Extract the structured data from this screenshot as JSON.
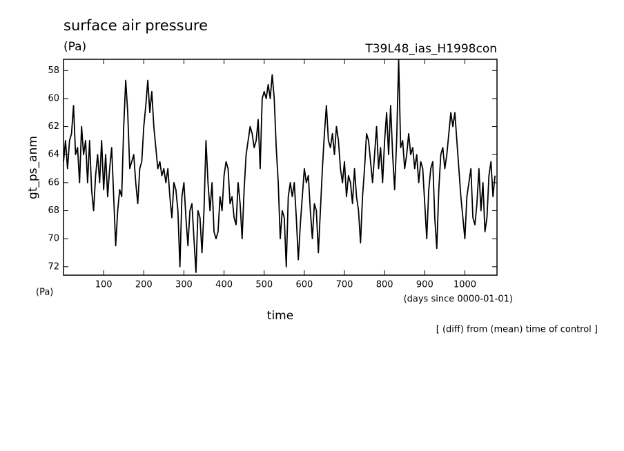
{
  "chart_data": {
    "type": "line",
    "title": "surface air pressure",
    "units": "(Pa)",
    "run_label": "T39L48_ias_H1998con",
    "y_label": "gt_ps_anm",
    "x_label": "time",
    "y_units_bottom": "(Pa)",
    "x_units": "(days since 0000-01-01)",
    "note": "[ (diff) from (mean) time of control ]",
    "xlim": [
      0,
      1080
    ],
    "ylim": [
      72.6,
      57.2
    ],
    "xticks": [
      100,
      200,
      300,
      400,
      500,
      600,
      700,
      800,
      900,
      1000
    ],
    "yticks": [
      58,
      60,
      62,
      64,
      66,
      68,
      70,
      72
    ],
    "color": "#000000",
    "x": [
      0,
      5,
      10,
      15,
      20,
      25,
      30,
      35,
      40,
      45,
      50,
      55,
      60,
      65,
      70,
      75,
      80,
      85,
      90,
      95,
      100,
      105,
      110,
      115,
      120,
      125,
      130,
      135,
      140,
      145,
      150,
      155,
      160,
      165,
      170,
      175,
      180,
      185,
      190,
      195,
      200,
      205,
      210,
      215,
      220,
      225,
      230,
      235,
      240,
      245,
      250,
      255,
      260,
      265,
      270,
      275,
      280,
      285,
      290,
      295,
      300,
      305,
      310,
      315,
      320,
      325,
      330,
      335,
      340,
      345,
      350,
      355,
      360,
      365,
      370,
      375,
      380,
      385,
      390,
      395,
      400,
      405,
      410,
      415,
      420,
      425,
      430,
      435,
      440,
      445,
      450,
      455,
      460,
      465,
      470,
      475,
      480,
      485,
      490,
      495,
      500,
      505,
      510,
      515,
      520,
      525,
      530,
      535,
      540,
      545,
      550,
      555,
      560,
      565,
      570,
      575,
      580,
      585,
      590,
      595,
      600,
      605,
      610,
      615,
      620,
      625,
      630,
      635,
      640,
      645,
      650,
      655,
      660,
      665,
      670,
      675,
      680,
      685,
      690,
      695,
      700,
      705,
      710,
      715,
      720,
      725,
      730,
      735,
      740,
      745,
      750,
      755,
      760,
      765,
      770,
      775,
      780,
      785,
      790,
      795,
      800,
      805,
      810,
      815,
      820,
      825,
      830,
      835,
      840,
      845,
      850,
      855,
      860,
      865,
      870,
      875,
      880,
      885,
      890,
      895,
      900,
      905,
      910,
      915,
      920,
      925,
      930,
      935,
      940,
      945,
      950,
      955,
      960,
      965,
      970,
      975,
      980,
      985,
      990,
      995,
      1000,
      1005,
      1010,
      1015,
      1020,
      1025,
      1030,
      1035,
      1040,
      1045,
      1050,
      1055,
      1060,
      1065,
      1070,
      1075
    ],
    "values": [
      64.5,
      63,
      65,
      63,
      62.5,
      60.5,
      64,
      63.5,
      66,
      62,
      64,
      63,
      66,
      63,
      66.5,
      68,
      65.5,
      64,
      66,
      63,
      66.5,
      64,
      67,
      65,
      63.5,
      67,
      70.5,
      68,
      66.5,
      67,
      62,
      58.7,
      61,
      65,
      64.5,
      64,
      66,
      67.5,
      65,
      64.5,
      62,
      60.5,
      58.7,
      61,
      59.5,
      62,
      63.5,
      65,
      64.5,
      65.5,
      65,
      66,
      65,
      67,
      68.5,
      66,
      66.5,
      68,
      72,
      67,
      66,
      68.5,
      70.5,
      68,
      67.5,
      70,
      72.4,
      68,
      68.5,
      71,
      68,
      63,
      66,
      68,
      66,
      69.5,
      70,
      69.5,
      67,
      68,
      65.5,
      64.5,
      65,
      67.5,
      67,
      68.5,
      69,
      66,
      67.5,
      70,
      66.5,
      64,
      63,
      62,
      62.5,
      63.5,
      63,
      61.5,
      65,
      60,
      59.5,
      60,
      59,
      60,
      58.3,
      60,
      63.5,
      66,
      70,
      68,
      68.5,
      72,
      67,
      66,
      67,
      66,
      68.5,
      71.5,
      69,
      67,
      65,
      66,
      65.5,
      68,
      70,
      67.5,
      68,
      71,
      68,
      65,
      62.5,
      60.5,
      63,
      63.5,
      62.5,
      64,
      62,
      63,
      65,
      66,
      64.5,
      67,
      65.5,
      66,
      67.5,
      65,
      67,
      68,
      70.3,
      67,
      65,
      62.5,
      63,
      64.5,
      66,
      64,
      62,
      65,
      63.5,
      66,
      63,
      61,
      64,
      60.5,
      64,
      66.5,
      63,
      57.2,
      63.5,
      63,
      65,
      64,
      62.5,
      64,
      63.5,
      65,
      64,
      66,
      64.5,
      65,
      67.5,
      70,
      66.5,
      65,
      64.5,
      68.5,
      70.7,
      66.5,
      64,
      63.5,
      65,
      64,
      62.5,
      61,
      62,
      61,
      63,
      65,
      67,
      68.5,
      70,
      67,
      66,
      65,
      68.5,
      69,
      67.5,
      65,
      68,
      66,
      69.5,
      68.5,
      65.5,
      64.5,
      67,
      65.5
    ]
  }
}
